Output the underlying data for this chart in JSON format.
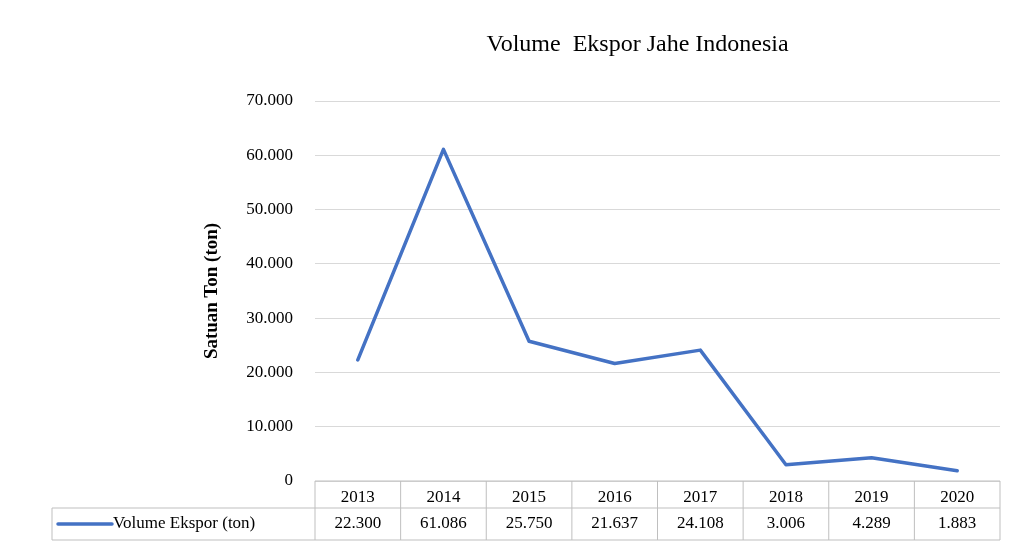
{
  "chart_data": {
    "type": "line",
    "title": "Volume  Ekspor Jahe Indonesia",
    "ylabel": "Satuan Ton (ton)",
    "categories": [
      "2013",
      "2014",
      "2015",
      "2016",
      "2017",
      "2018",
      "2019",
      "2020"
    ],
    "series": [
      {
        "name": "Volume Ekspor (ton)",
        "color": "#4472c4",
        "values": [
          22300,
          61086,
          25750,
          21637,
          24108,
          3006,
          4289,
          1883
        ],
        "value_labels": [
          "22.300",
          "61.086",
          "25.750",
          "21.637",
          "24.108",
          "3.006",
          "4.289",
          "1.883"
        ]
      }
    ],
    "ylim": [
      0,
      70000
    ],
    "yticks": [
      0,
      {
        "value": 10000,
        "label": "10.000"
      },
      {
        "value": 20000,
        "label": "20.000"
      },
      {
        "value": 30000,
        "label": "30.000"
      },
      {
        "value": 40000,
        "label": "40.000"
      },
      {
        "value": 50000,
        "label": "50.000"
      },
      {
        "value": 60000,
        "label": "60.000"
      },
      {
        "value": 70000,
        "label": "70.000"
      }
    ],
    "grid": "y",
    "legend": "bottom",
    "marker": "none",
    "line_style": "solid"
  }
}
